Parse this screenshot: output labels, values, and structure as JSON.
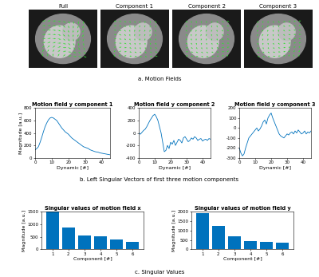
{
  "panels": {
    "titles": [
      "Full",
      "Component 1",
      "Component 2",
      "Component 3"
    ]
  },
  "captions": [
    "a. Motion Fields",
    "b. Left Singular Vectors of first three motion components",
    "c. Singular Values"
  ],
  "chart_data": [
    {
      "type": "line",
      "title": "Motion field y component 1",
      "x_label": "Dynamic [#]",
      "y_label": "Magnitude [a.u.]",
      "x": [
        0,
        1,
        2,
        3,
        4,
        5,
        6,
        7,
        8,
        9,
        10,
        11,
        12,
        13,
        14,
        15,
        16,
        17,
        18,
        19,
        20,
        21,
        22,
        23,
        24,
        25,
        26,
        27,
        28,
        29,
        30,
        31,
        32,
        33,
        34,
        35,
        36,
        37,
        38,
        39,
        40,
        41,
        42,
        43,
        44,
        45
      ],
      "values": [
        130,
        150,
        180,
        250,
        330,
        420,
        500,
        560,
        610,
        640,
        650,
        640,
        620,
        600,
        560,
        520,
        480,
        450,
        420,
        400,
        380,
        350,
        320,
        300,
        280,
        260,
        240,
        220,
        200,
        180,
        170,
        160,
        150,
        130,
        120,
        110,
        100,
        95,
        90,
        80,
        75,
        70,
        65,
        60,
        55,
        50
      ],
      "color": "#0072BD",
      "xlim": [
        0,
        45
      ],
      "xticks": [
        0,
        10,
        20,
        30,
        40
      ],
      "ylim": [
        0,
        800
      ],
      "yticks": [
        0,
        200,
        400,
        600,
        800
      ]
    },
    {
      "type": "line",
      "title": "Motion field y component 2",
      "x_label": "Dynamic [#]",
      "x": [
        0,
        1,
        2,
        3,
        4,
        5,
        6,
        7,
        8,
        9,
        10,
        11,
        12,
        13,
        14,
        15,
        16,
        17,
        18,
        19,
        20,
        21,
        22,
        23,
        24,
        25,
        26,
        27,
        28,
        29,
        30,
        31,
        32,
        33,
        34,
        35,
        36,
        37,
        38,
        39,
        40,
        41,
        42,
        43,
        44,
        45
      ],
      "values": [
        0,
        -20,
        10,
        40,
        60,
        100,
        150,
        200,
        240,
        280,
        300,
        260,
        200,
        100,
        0,
        -150,
        -300,
        -280,
        -200,
        -250,
        -150,
        -180,
        -120,
        -200,
        -150,
        -100,
        -120,
        -160,
        -80,
        -60,
        -100,
        -140,
        -120,
        -80,
        -100,
        -60,
        -80,
        -120,
        -100,
        -90,
        -130,
        -110,
        -100,
        -120,
        -90,
        -100
      ],
      "color": "#0072BD",
      "xlim": [
        0,
        45
      ],
      "xticks": [
        0,
        10,
        20,
        30,
        40
      ],
      "ylim": [
        -400,
        400
      ],
      "yticks": [
        -400,
        -200,
        0,
        200,
        400
      ]
    },
    {
      "type": "line",
      "title": "Motion field y component 3",
      "x_label": "Dynamic [#]",
      "x": [
        0,
        1,
        2,
        3,
        4,
        5,
        6,
        7,
        8,
        9,
        10,
        11,
        12,
        13,
        14,
        15,
        16,
        17,
        18,
        19,
        20,
        21,
        22,
        23,
        24,
        25,
        26,
        27,
        28,
        29,
        30,
        31,
        32,
        33,
        34,
        35,
        36,
        37,
        38,
        39,
        40,
        41,
        42,
        43,
        44,
        45
      ],
      "values": [
        -200,
        -250,
        -280,
        -260,
        -200,
        -150,
        -100,
        -80,
        -60,
        -40,
        -20,
        0,
        -30,
        -10,
        20,
        60,
        80,
        40,
        100,
        130,
        150,
        100,
        60,
        20,
        -20,
        -60,
        -80,
        -90,
        -100,
        -80,
        -60,
        -70,
        -50,
        -40,
        -60,
        -30,
        -50,
        -20,
        -40,
        -60,
        -50,
        -30,
        -60,
        -40,
        -50,
        -30
      ],
      "color": "#0072BD",
      "xlim": [
        0,
        45
      ],
      "xticks": [
        0,
        10,
        20,
        30,
        40
      ],
      "ylim": [
        -300,
        200
      ],
      "yticks": [
        -300,
        -200,
        -100,
        0,
        100,
        200
      ]
    },
    {
      "type": "bar",
      "title": "Singular values of motion field x",
      "x_label": "Component [#]",
      "y_label": "Magnitude [a.u.]",
      "categories": [
        "1",
        "2",
        "3",
        "4",
        "5",
        "6"
      ],
      "values": [
        1500,
        880,
        560,
        520,
        390,
        290
      ],
      "color": "#0072BD",
      "ylim": [
        0,
        1500
      ],
      "yticks": [
        0,
        500,
        1000,
        1500
      ]
    },
    {
      "type": "bar",
      "title": "Singular values of motion field y",
      "x_label": "Component [#]",
      "y_label": "Magnitude [a.u.]",
      "categories": [
        "1",
        "2",
        "3",
        "4",
        "5",
        "6"
      ],
      "values": [
        1950,
        1250,
        680,
        450,
        380,
        350
      ],
      "color": "#0072BD",
      "ylim": [
        0,
        2000
      ],
      "yticks": [
        0,
        500,
        1000,
        1500,
        2000
      ]
    }
  ]
}
